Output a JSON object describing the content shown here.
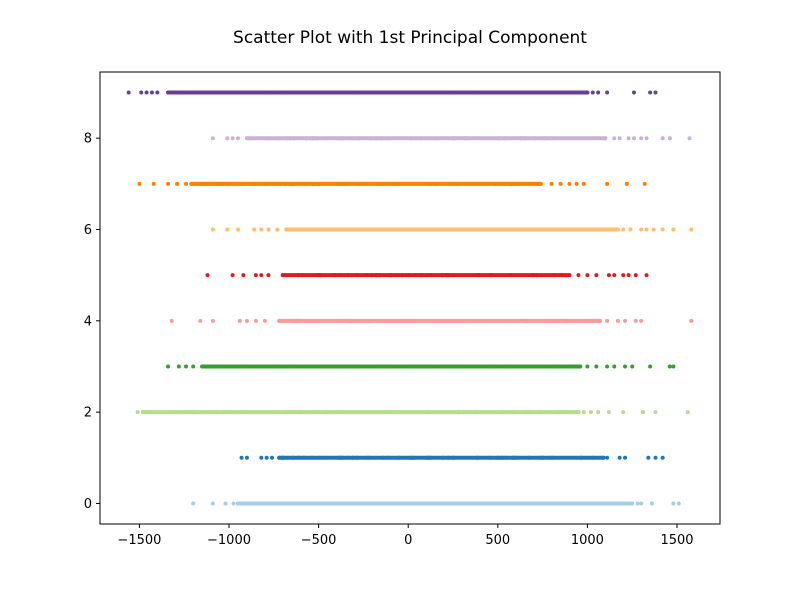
{
  "chart_data": {
    "type": "scatter",
    "title": "Scatter Plot with 1st Principal Component",
    "xlabel": "",
    "ylabel": "",
    "xlim": [
      -1720,
      1740
    ],
    "ylim": [
      -0.45,
      9.45
    ],
    "grid": false,
    "x_ticks": [
      -1500,
      -1000,
      -500,
      0,
      500,
      1000,
      1500
    ],
    "x_tick_labels": [
      "−1500",
      "−1000",
      "−500",
      "0",
      "500",
      "1000",
      "1500"
    ],
    "y_ticks": [
      0,
      2,
      4,
      6,
      8
    ],
    "y_tick_labels": [
      "0",
      "2",
      "4",
      "6",
      "8"
    ],
    "series": [
      {
        "y": 0,
        "color": "#a6cee3",
        "dense_range": [
          -950,
          1250
        ],
        "points": [
          -1200,
          -1090,
          -1020,
          -975,
          -950,
          1250,
          1280,
          1300,
          1360,
          1480,
          1510
        ]
      },
      {
        "y": 1,
        "color": "#1f78b4",
        "dense_range": [
          -720,
          1090
        ],
        "points": [
          -930,
          -900,
          -820,
          -790,
          -760,
          -720,
          1090,
          1110,
          1180,
          1210,
          1340,
          1380,
          1420
        ]
      },
      {
        "y": 2,
        "color": "#b2df8a",
        "dense_range": [
          -1480,
          950
        ],
        "points": [
          -1510,
          -1480,
          950,
          980,
          1020,
          1060,
          1120,
          1200,
          1310,
          1380,
          1560
        ]
      },
      {
        "y": 3,
        "color": "#33a02c",
        "dense_range": [
          -1150,
          960
        ],
        "points": [
          -1340,
          -1280,
          -1240,
          -1200,
          -1150,
          960,
          1000,
          1050,
          1110,
          1150,
          1210,
          1250,
          1350,
          1460,
          1480
        ]
      },
      {
        "y": 4,
        "color": "#fb9a99",
        "dense_range": [
          -720,
          1070
        ],
        "points": [
          -1320,
          -1160,
          -1090,
          -940,
          -900,
          -850,
          -800,
          -720,
          1070,
          1110,
          1170,
          1210,
          1270,
          1300,
          1580
        ]
      },
      {
        "y": 5,
        "color": "#e31a1c",
        "dense_range": [
          -700,
          900
        ],
        "points": [
          -1120,
          -980,
          -920,
          -850,
          -820,
          -780,
          -700,
          900,
          950,
          1000,
          1050,
          1120,
          1150,
          1200,
          1230,
          1270,
          1330
        ]
      },
      {
        "y": 6,
        "color": "#fdbf6f",
        "dense_range": [
          -680,
          1170
        ],
        "points": [
          -1090,
          -1010,
          -950,
          -860,
          -820,
          -780,
          -730,
          -680,
          1170,
          1200,
          1240,
          1300,
          1330,
          1370,
          1420,
          1480,
          1580
        ]
      },
      {
        "y": 7,
        "color": "#ff7f00",
        "dense_range": [
          -1210,
          740
        ],
        "points": [
          -1500,
          -1420,
          -1340,
          -1290,
          -1240,
          -1210,
          740,
          800,
          850,
          900,
          940,
          980,
          1110,
          1220,
          1320
        ]
      },
      {
        "y": 8,
        "color": "#cab2d6",
        "dense_range": [
          -900,
          1100
        ],
        "points": [
          -1090,
          -1010,
          -980,
          -950,
          -900,
          1100,
          1150,
          1180,
          1230,
          1260,
          1300,
          1330,
          1420,
          1460,
          1570
        ]
      },
      {
        "y": 9,
        "color": "#6a3d9a",
        "dense_range": [
          -1340,
          1000
        ],
        "points": [
          -1560,
          -1490,
          -1460,
          -1430,
          -1400,
          -1340,
          1000,
          1030,
          1060,
          1110,
          1260,
          1350,
          1380
        ]
      }
    ]
  }
}
